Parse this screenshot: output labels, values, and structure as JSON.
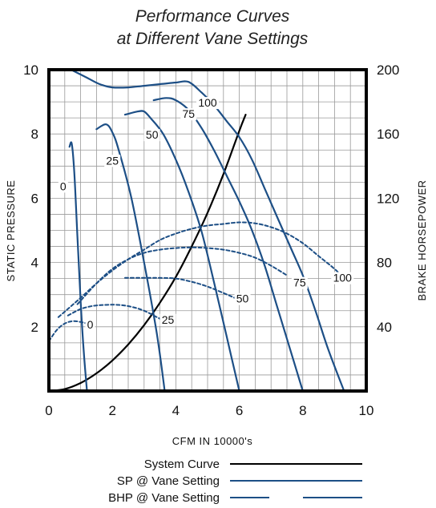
{
  "chart_data": {
    "type": "line",
    "title": [
      "Performance Curves",
      "at Different Vane Settings"
    ],
    "xlabel": "CFM  IN  10000's",
    "ylabel": "STATIC  PRESSURE",
    "y2label": "BRAKE  HORSEPOWER",
    "xlim": [
      0,
      10
    ],
    "ylim": [
      0,
      10
    ],
    "y2lim": [
      0,
      200
    ],
    "x_ticks": [
      "0",
      "2",
      "4",
      "6",
      "8",
      "10"
    ],
    "y_ticks": [
      "2",
      "4",
      "6",
      "8",
      "10"
    ],
    "y2_ticks": [
      "40",
      "80",
      "120",
      "160",
      "200"
    ],
    "grid": true,
    "colors": {
      "system": "#000000",
      "sp": "#1d4f86",
      "bhp": "#1d4f86",
      "grid": "#9a9a9a"
    },
    "series": [
      {
        "name": "System Curve",
        "style": "system",
        "axis": "y",
        "x": [
          0,
          0.5,
          1,
          1.5,
          2,
          2.5,
          3,
          3.5,
          4,
          4.5,
          5,
          5.5,
          6,
          6.2
        ],
        "y": [
          0,
          0.06,
          0.25,
          0.55,
          0.95,
          1.45,
          2.05,
          2.75,
          3.55,
          4.5,
          5.55,
          6.75,
          8.1,
          8.6
        ]
      },
      {
        "name": "0",
        "style": "sp",
        "axis": "y",
        "x": [
          0.65,
          0.72,
          0.8,
          0.9,
          1.0,
          1.1,
          1.2
        ],
        "y": [
          7.6,
          7.7,
          6.8,
          4.8,
          2.8,
          1.2,
          0
        ]
      },
      {
        "name": "25",
        "style": "sp",
        "axis": "y",
        "x": [
          1.5,
          1.8,
          2.0,
          2.2,
          2.6,
          3.0,
          3.4,
          3.65
        ],
        "y": [
          8.15,
          8.3,
          8.05,
          7.5,
          6.0,
          4.0,
          1.8,
          0
        ]
      },
      {
        "name": "50",
        "style": "sp",
        "axis": "y",
        "x": [
          2.4,
          2.8,
          3.0,
          3.2,
          3.6,
          4.0,
          4.4,
          4.8,
          5.2,
          5.6,
          6.0
        ],
        "y": [
          8.6,
          8.7,
          8.7,
          8.5,
          8.0,
          7.2,
          6.2,
          5.0,
          3.4,
          1.7,
          0
        ]
      },
      {
        "name": "75",
        "style": "sp",
        "axis": "y",
        "x": [
          3.3,
          3.7,
          4.0,
          4.4,
          4.8,
          5.2,
          5.6,
          6.0,
          6.4,
          6.8,
          7.2,
          7.6,
          8.0
        ],
        "y": [
          9.05,
          9.12,
          9.05,
          8.75,
          8.2,
          7.5,
          6.7,
          5.9,
          5.0,
          3.9,
          2.6,
          1.3,
          0
        ]
      },
      {
        "name": "100",
        "style": "sp",
        "axis": "y",
        "x": [
          0.7,
          1.2,
          1.6,
          2.0,
          2.5,
          3.0,
          3.5,
          4.0,
          4.4,
          4.8,
          5.2,
          5.6,
          6.0,
          6.4,
          6.8,
          7.2,
          7.6,
          8.0,
          8.4,
          8.8,
          9.3
        ],
        "y": [
          10.0,
          9.75,
          9.55,
          9.45,
          9.45,
          9.5,
          9.55,
          9.6,
          9.62,
          9.3,
          8.9,
          8.4,
          7.9,
          7.2,
          6.3,
          5.4,
          4.5,
          3.6,
          2.5,
          1.3,
          0
        ]
      },
      {
        "name": "0",
        "style": "bhp",
        "axis": "y2",
        "x": [
          0,
          0.25,
          0.5,
          0.75,
          1.0,
          1.2
        ],
        "y": [
          31,
          38,
          42,
          43.5,
          43,
          42
        ]
      },
      {
        "name": "25",
        "style": "bhp",
        "axis": "y",
        "x": [
          0.6,
          1.0,
          1.4,
          1.8,
          2.2,
          2.6,
          3.0,
          3.4,
          3.7
        ],
        "y": [
          2.35,
          2.55,
          2.65,
          2.68,
          2.68,
          2.62,
          2.5,
          2.3,
          2.15
        ]
      },
      {
        "name": "50",
        "style": "bhp",
        "axis": "y",
        "x": [
          2.4,
          3.0,
          3.5,
          4.0,
          4.5,
          5.0,
          5.5,
          5.85
        ],
        "y": [
          3.52,
          3.52,
          3.52,
          3.5,
          3.4,
          3.25,
          3.05,
          2.9
        ]
      },
      {
        "name": "75",
        "style": "bhp",
        "axis": "y",
        "x": [
          0.9,
          1.5,
          2.0,
          2.5,
          3.0,
          3.5,
          4.0,
          4.5,
          5.0,
          5.5,
          6.0,
          6.5,
          7.0,
          7.5
        ],
        "y": [
          2.7,
          3.35,
          3.8,
          4.1,
          4.3,
          4.4,
          4.45,
          4.47,
          4.45,
          4.4,
          4.3,
          4.15,
          3.9,
          3.6
        ]
      },
      {
        "name": "100",
        "style": "bhp",
        "axis": "y",
        "x": [
          0.3,
          1.0,
          1.5,
          2.0,
          2.5,
          3.0,
          3.5,
          4.0,
          4.5,
          5.0,
          5.5,
          6.0,
          6.5,
          7.0,
          7.5,
          8.0,
          8.5,
          9.0,
          9.3
        ],
        "y": [
          2.3,
          2.9,
          3.35,
          3.75,
          4.1,
          4.4,
          4.7,
          4.9,
          5.05,
          5.15,
          5.2,
          5.25,
          5.22,
          5.1,
          4.9,
          4.6,
          4.2,
          3.8,
          3.5
        ]
      }
    ],
    "curve_labels": [
      {
        "text": "0",
        "x": 0.45,
        "y": 6.3
      },
      {
        "text": "25",
        "x": 2.0,
        "y": 7.1
      },
      {
        "text": "50",
        "x": 3.25,
        "y": 7.9
      },
      {
        "text": "75",
        "x": 4.4,
        "y": 8.55
      },
      {
        "text": "100",
        "x": 5.0,
        "y": 8.9
      },
      {
        "text": "0",
        "x": 1.3,
        "y": 2.0
      },
      {
        "text": "25",
        "x": 3.75,
        "y": 2.15
      },
      {
        "text": "50",
        "x": 6.1,
        "y": 2.8
      },
      {
        "text": "75",
        "x": 7.9,
        "y": 3.3
      },
      {
        "text": "100",
        "x": 9.25,
        "y": 3.45
      }
    ],
    "legend": {
      "placement": "bottom",
      "entries": [
        {
          "label": "System Curve",
          "style": "system"
        },
        {
          "label": "SP  @  Vane Setting",
          "style": "sp"
        },
        {
          "label": "BHP  @  Vane Setting",
          "style": "bhp"
        }
      ]
    }
  }
}
